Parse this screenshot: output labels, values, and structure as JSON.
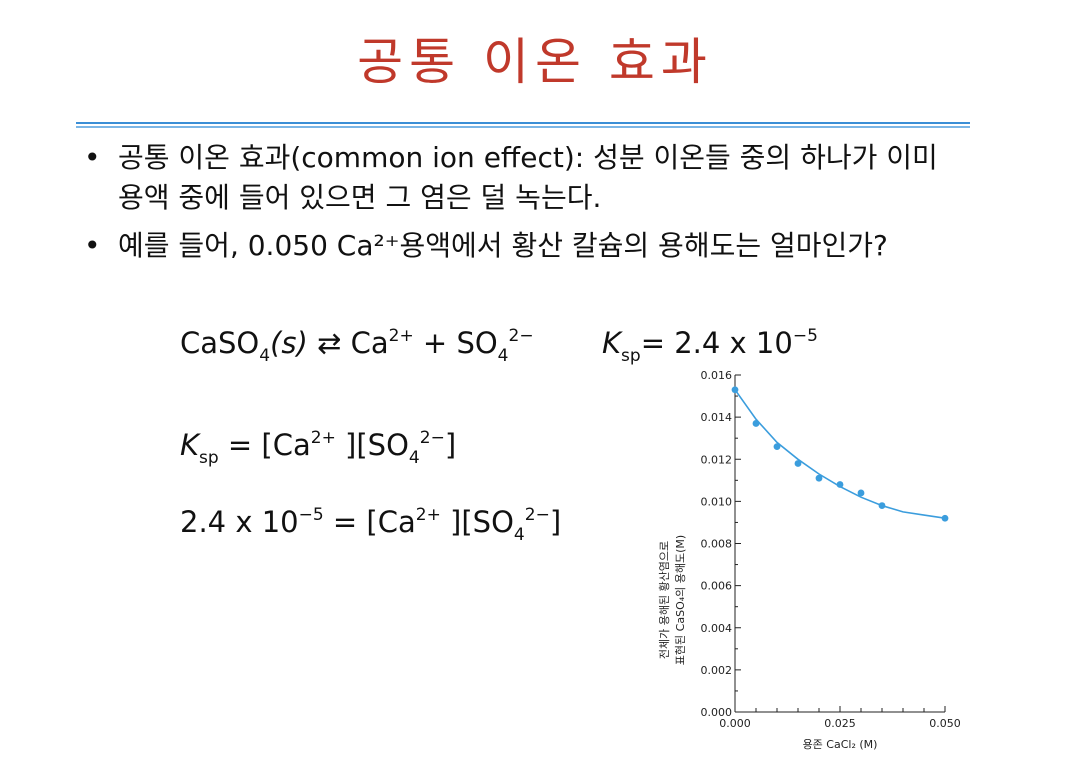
{
  "title": "공통 이온 효과",
  "bullets": [
    {
      "marker": "•",
      "text": "공통 이온 효과(common ion effect): 성분 이온들 중의 하나가 이미 용액 중에 들어 있으면 그 염은 덜 녹는다."
    },
    {
      "marker": "•",
      "text": "예를 들어, 0.050  Ca²⁺용액에서 황산 칼슘의 용해도는 얼마인가?"
    }
  ],
  "equations": {
    "reaction": {
      "lhs_base": "CaSO",
      "lhs_sub": "4",
      "lhs_state": "(s)",
      "arrow": "⇄",
      "ca": "Ca",
      "ca_charge": "2+",
      "plus": "+",
      "so": "SO",
      "so_sub": "4",
      "so_charge": "2−"
    },
    "ksp_value": {
      "k": "K",
      "k_sub": "sp",
      "rhs": "= 2.4 x 10",
      "exp": "−5"
    },
    "ksp_expr": {
      "k": "K",
      "k_sub": "sp",
      "rhs_open": "= [Ca",
      "ca_charge": "2+",
      "mid": " ][SO",
      "so_sub": "4",
      "so_charge": "2−",
      "close": "]"
    },
    "numeric": {
      "lhs": "2.4 x 10",
      "exp": "−5",
      "rhs_open": " = [Ca",
      "ca_charge": "2+",
      "mid": " ][SO",
      "so_sub": "4",
      "so_charge": "2−",
      "close": "]"
    }
  },
  "chart_data": {
    "type": "scatter",
    "x_label": "용존 CaCl₂ (M)",
    "y_label_line1": "전체가 용해된 황산염으로",
    "y_label_line2": "표현된 CaSO₄의 용해도(M)",
    "x_ticks": [
      "0.000",
      "0.025",
      "0.050"
    ],
    "y_ticks": [
      "0.000",
      "0.002",
      "0.004",
      "0.006",
      "0.008",
      "0.010",
      "0.012",
      "0.014",
      "0.016"
    ],
    "xlim": [
      0,
      0.05
    ],
    "ylim": [
      0,
      0.016
    ],
    "points": [
      {
        "x": 0.0,
        "y": 0.0153
      },
      {
        "x": 0.005,
        "y": 0.0137
      },
      {
        "x": 0.01,
        "y": 0.0126
      },
      {
        "x": 0.015,
        "y": 0.0118
      },
      {
        "x": 0.02,
        "y": 0.0111
      },
      {
        "x": 0.025,
        "y": 0.0108
      },
      {
        "x": 0.03,
        "y": 0.0104
      },
      {
        "x": 0.035,
        "y": 0.0098
      },
      {
        "x": 0.05,
        "y": 0.0092
      }
    ],
    "curve": [
      {
        "x": 0.0,
        "y": 0.0153
      },
      {
        "x": 0.005,
        "y": 0.0139
      },
      {
        "x": 0.01,
        "y": 0.0128
      },
      {
        "x": 0.015,
        "y": 0.012
      },
      {
        "x": 0.02,
        "y": 0.0113
      },
      {
        "x": 0.025,
        "y": 0.0107
      },
      {
        "x": 0.03,
        "y": 0.0102
      },
      {
        "x": 0.035,
        "y": 0.0098
      },
      {
        "x": 0.04,
        "y": 0.0095
      },
      {
        "x": 0.045,
        "y": 0.00935
      },
      {
        "x": 0.05,
        "y": 0.0092
      }
    ],
    "color": "#3b9ddd"
  }
}
